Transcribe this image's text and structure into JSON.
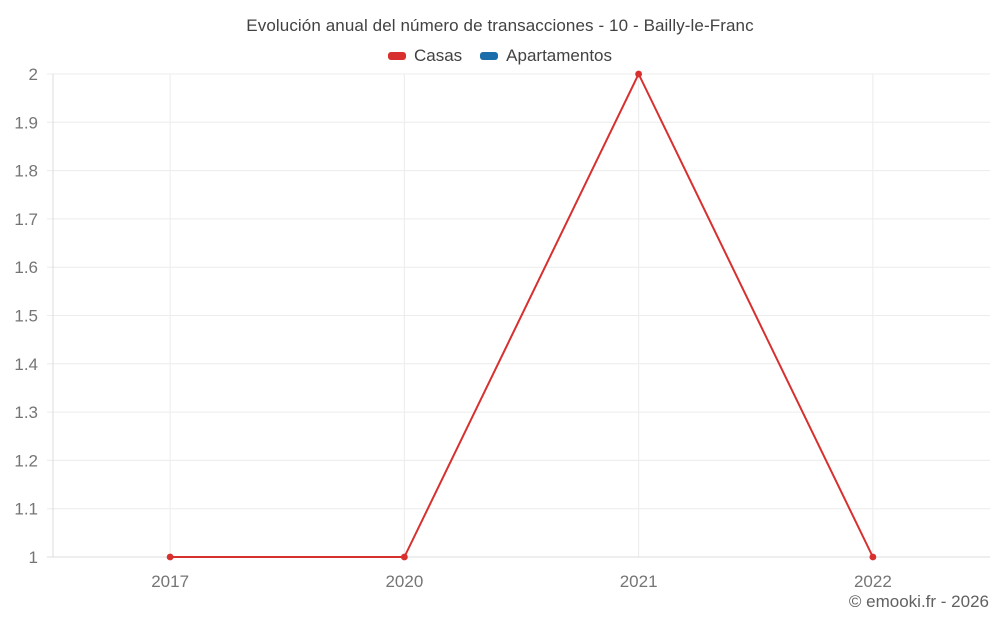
{
  "header": {
    "title": "Evolución anual del número de transacciones - 10 - Bailly-le-Franc"
  },
  "footer": {
    "text": "© emooki.fr - 2026"
  },
  "chart_data": {
    "type": "line",
    "title": "Evolución anual del número de transacciones - 10 - Bailly-le-Franc",
    "categories": [
      "2017",
      "2020",
      "2021",
      "2022"
    ],
    "series": [
      {
        "name": "Casas",
        "color": "#d7302f",
        "values": [
          1,
          1,
          2,
          1
        ]
      },
      {
        "name": "Apartamentos",
        "color": "#1a6da8",
        "values": []
      }
    ],
    "ylim": [
      1,
      2
    ],
    "yticks": [
      1,
      1.1,
      1.2,
      1.3,
      1.4,
      1.5,
      1.6,
      1.7,
      1.8,
      1.9,
      2
    ],
    "ytick_labels": [
      "1",
      "1.1",
      "1.2",
      "1.3",
      "1.4",
      "1.5",
      "1.6",
      "1.7",
      "1.8",
      "1.9",
      "2"
    ],
    "xlabel": "",
    "ylabel": "",
    "grid": true,
    "legend_position": "top",
    "colors": {
      "grid": "#ececec",
      "axis": "#dcdcdc",
      "tick_label": "#757575",
      "title_text": "#424242",
      "footer_text": "#616161"
    }
  }
}
